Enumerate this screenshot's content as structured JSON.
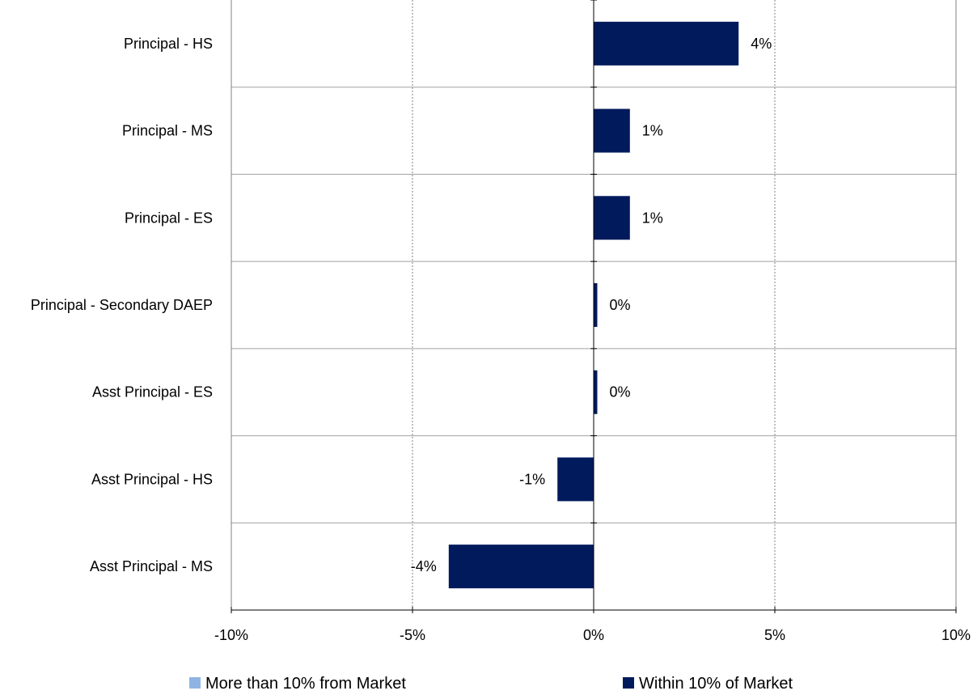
{
  "chart_data": {
    "type": "bar",
    "orientation": "horizontal",
    "title": "",
    "xlabel": "",
    "ylabel": "",
    "xlim": [
      -10,
      10
    ],
    "x_ticks": [
      -10,
      -5,
      0,
      5,
      10
    ],
    "x_tick_labels": [
      "-10%",
      "-5%",
      "0%",
      "5%",
      "10%"
    ],
    "categories": [
      "Principal - HS",
      "Principal - MS",
      "Principal - ES",
      "Principal - Secondary DAEP",
      "Asst Principal - ES",
      "Asst Principal - HS",
      "Asst Principal - MS"
    ],
    "series": [
      {
        "name": "Within 10% of Market",
        "color": "#001a5c",
        "values": [
          4,
          1,
          1,
          0.1,
          0.1,
          -1,
          -4
        ],
        "data_labels": [
          "4%",
          "1%",
          "1%",
          "0%",
          "0%",
          "-1%",
          "-4%"
        ]
      }
    ],
    "legend": {
      "position": "bottom",
      "items": [
        {
          "label": "More than 10% from Market",
          "color": "#8fb4e3"
        },
        {
          "label": "Within 10% of Market",
          "color": "#001a5c"
        }
      ]
    },
    "grid": {
      "vertical": true,
      "vertical_style": "dotted",
      "horizontal": true
    }
  }
}
